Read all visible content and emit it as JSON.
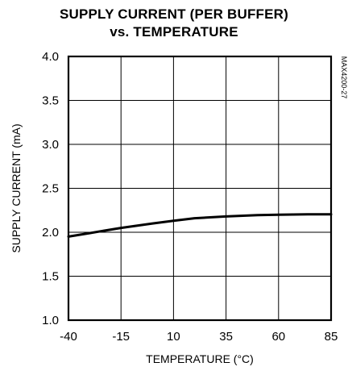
{
  "chart_data": {
    "type": "line",
    "title_lines": [
      "SUPPLY CURRENT (PER BUFFER)",
      "vs. TEMPERATURE"
    ],
    "xlabel": "TEMPERATURE (°C)",
    "ylabel": "SUPPLY CURRENT (mA)",
    "side_label": "MAX4200-27",
    "xlim": [
      -40,
      85
    ],
    "ylim": [
      1.0,
      4.0
    ],
    "x_ticks": [
      -40,
      -15,
      10,
      35,
      60,
      85
    ],
    "x_tick_labels": [
      "-40",
      "-15",
      "10",
      "35",
      "60",
      "85"
    ],
    "y_ticks": [
      1.0,
      1.5,
      2.0,
      2.5,
      3.0,
      3.5,
      4.0
    ],
    "y_tick_labels": [
      "1.0",
      "1.5",
      "2.0",
      "2.5",
      "3.0",
      "3.5",
      "4.0"
    ],
    "grid": true,
    "series": [
      {
        "x": [
          -40,
          -30,
          -15,
          0,
          10,
          20,
          35,
          50,
          60,
          75,
          85
        ],
        "y": [
          1.95,
          1.99,
          2.05,
          2.1,
          2.13,
          2.16,
          2.18,
          2.195,
          2.2,
          2.205,
          2.205
        ]
      }
    ]
  }
}
